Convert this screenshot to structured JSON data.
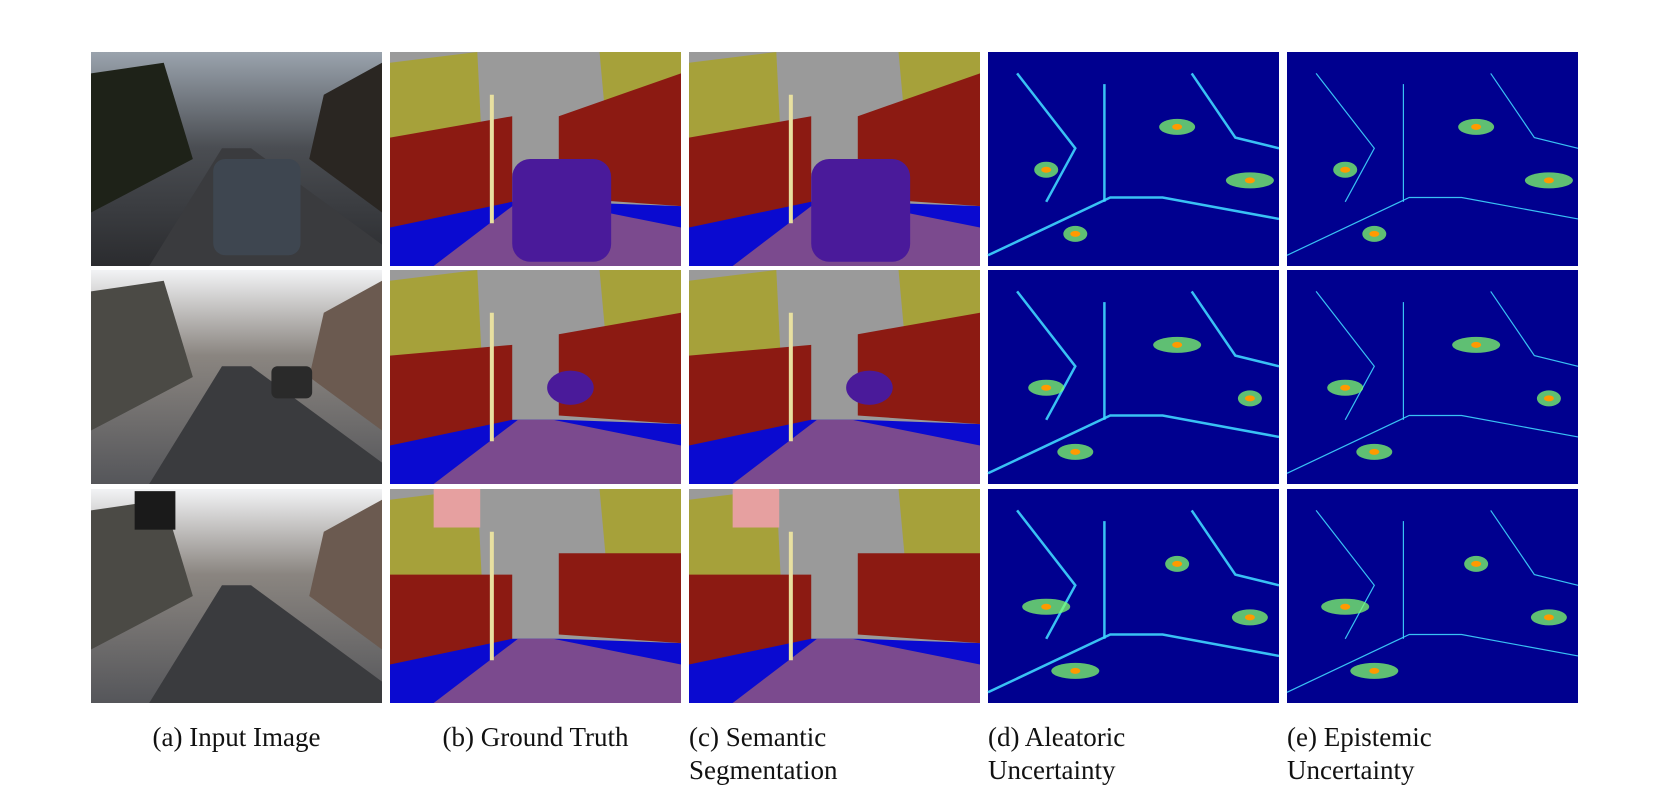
{
  "panels": [
    {
      "caption": [
        "(a) Input Image"
      ]
    },
    {
      "caption": [
        "(b) Ground Truth"
      ]
    },
    {
      "caption": [
        "(c) Semantic",
        "Segmentation"
      ]
    },
    {
      "caption": [
        "(d) Aleatoric",
        "Uncertainty"
      ]
    },
    {
      "caption": [
        "(e) Epistemic",
        "Uncertainty"
      ]
    }
  ]
}
